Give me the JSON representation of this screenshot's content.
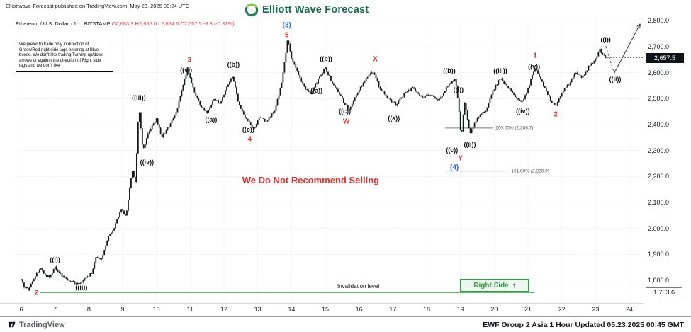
{
  "header": {
    "publisher": "Elliottwave-Forecast published on TradingView.com, May 23, 2025 00:24 UTC",
    "logo_text": "Elliott Wave Forecast",
    "currency": "USD"
  },
  "symbol_line": {
    "title": "Ethereum / U.S. Dollar · 1h · BITSTAMP",
    "ohlc": "O2,663.3  H2,665.0  L2,654.6  C2,657.5  -8.3 (-0.31%)"
  },
  "disclaimer": {
    "text": "We prefer to trade only in direction of Green/Red right side tags entering at Blue boxes. We don't like trading Turning up/down arrows or against the direction of Right side tags and we don't like"
  },
  "note": {
    "text": "We Do Not Recommend Selling",
    "day": 12.54,
    "price": 2206
  },
  "invalidation": {
    "label": "Invalidation level",
    "price": 1753.6,
    "price_label": "1,753.6",
    "from_day": 6.55,
    "to_day": 21.2,
    "right_side": "Right Side",
    "arrow": "↑"
  },
  "footer": {
    "brand": "TradingView",
    "note": "EWF Group 2 Asia 1 Hour Updated 05.23.2025 00:45 GMT"
  },
  "colors": {
    "candle": "#14171c",
    "red_label": "#e03131",
    "blue_label": "#2962ff",
    "dark_label": "#111111",
    "invalidation_green": "#4caf50",
    "right_side_green": "#2f9e44",
    "ohlc_red": "#f23645",
    "fib_gray": "#787b86"
  },
  "chart_data": {
    "type": "candlestick",
    "symbol": "ETHUSD",
    "interval": "1h",
    "exchange": "BITSTAMP",
    "ohlc": {
      "open": 2663.3,
      "high": 2665.0,
      "low": 2654.6,
      "close": 2657.5,
      "change": -8.3,
      "change_pct": "-0.31%"
    },
    "last_price": 2657.5,
    "last_price_label": "2,657.5",
    "x_axis": {
      "ticks": [
        6,
        7,
        8,
        9,
        10,
        11,
        12,
        13,
        14,
        15,
        16,
        17,
        18,
        19,
        20,
        21,
        22,
        23,
        24
      ]
    },
    "y_axis": {
      "ticks": [
        "2,800.0",
        "2,700.0",
        "2,600.0",
        "2,500.0",
        "2,400.0",
        "2,300.0",
        "2,200.0",
        "2,100.0",
        "2,000.0",
        "1,900.0",
        "1,800.0"
      ]
    },
    "price_path": [
      [
        6.0,
        1800
      ],
      [
        6.1,
        1772
      ],
      [
        6.22,
        1762
      ],
      [
        6.35,
        1802
      ],
      [
        6.55,
        1848
      ],
      [
        6.7,
        1820
      ],
      [
        6.85,
        1812
      ],
      [
        7.0,
        1852
      ],
      [
        7.12,
        1828
      ],
      [
        7.3,
        1808
      ],
      [
        7.5,
        1795
      ],
      [
        7.72,
        1785
      ],
      [
        7.95,
        1812
      ],
      [
        8.1,
        1832
      ],
      [
        8.22,
        1895
      ],
      [
        8.38,
        1878
      ],
      [
        8.55,
        1958
      ],
      [
        8.75,
        2005
      ],
      [
        8.95,
        2072
      ],
      [
        9.1,
        2048
      ],
      [
        9.28,
        2225
      ],
      [
        9.38,
        2175
      ],
      [
        9.48,
        2478
      ],
      [
        9.6,
        2295
      ],
      [
        9.78,
        2375
      ],
      [
        10.0,
        2422
      ],
      [
        10.15,
        2352
      ],
      [
        10.35,
        2388
      ],
      [
        10.6,
        2452
      ],
      [
        10.8,
        2555
      ],
      [
        10.92,
        2618
      ],
      [
        11.1,
        2535
      ],
      [
        11.3,
        2472
      ],
      [
        11.52,
        2445
      ],
      [
        11.7,
        2502
      ],
      [
        11.88,
        2478
      ],
      [
        12.08,
        2542
      ],
      [
        12.25,
        2585
      ],
      [
        12.45,
        2475
      ],
      [
        12.65,
        2422
      ],
      [
        12.88,
        2382
      ],
      [
        13.05,
        2428
      ],
      [
        13.25,
        2412
      ],
      [
        13.5,
        2452
      ],
      [
        13.72,
        2568
      ],
      [
        13.88,
        2728
      ],
      [
        14.02,
        2648
      ],
      [
        14.18,
        2598
      ],
      [
        14.38,
        2545
      ],
      [
        14.58,
        2518
      ],
      [
        14.78,
        2572
      ],
      [
        15.0,
        2618
      ],
      [
        15.2,
        2562
      ],
      [
        15.45,
        2508
      ],
      [
        15.7,
        2455
      ],
      [
        16.0,
        2538
      ],
      [
        16.4,
        2608
      ],
      [
        16.62,
        2538
      ],
      [
        16.85,
        2502
      ],
      [
        17.1,
        2476
      ],
      [
        17.35,
        2522
      ],
      [
        17.6,
        2542
      ],
      [
        17.85,
        2505
      ],
      [
        18.1,
        2518
      ],
      [
        18.35,
        2492
      ],
      [
        18.6,
        2545
      ],
      [
        18.85,
        2580
      ],
      [
        18.95,
        2462
      ],
      [
        19.02,
        2342
      ],
      [
        19.12,
        2488
      ],
      [
        19.28,
        2366
      ],
      [
        19.5,
        2428
      ],
      [
        19.75,
        2455
      ],
      [
        19.95,
        2528
      ],
      [
        20.18,
        2580
      ],
      [
        20.4,
        2545
      ],
      [
        20.65,
        2502
      ],
      [
        20.85,
        2486
      ],
      [
        21.05,
        2558
      ],
      [
        21.2,
        2620
      ],
      [
        21.45,
        2552
      ],
      [
        21.65,
        2498
      ],
      [
        21.82,
        2470
      ],
      [
        22.0,
        2525
      ],
      [
        22.2,
        2555
      ],
      [
        22.4,
        2602
      ],
      [
        22.6,
        2578
      ],
      [
        22.8,
        2625
      ],
      [
        23.0,
        2652
      ],
      [
        23.12,
        2690
      ],
      [
        23.2,
        2668
      ],
      [
        23.33,
        2657.5
      ]
    ],
    "wave_labels": [
      {
        "text": "2",
        "day": 6.45,
        "price": 1750,
        "color": "red"
      },
      {
        "text": "((i))",
        "day": 7.0,
        "price": 1878,
        "color": "dark"
      },
      {
        "text": "((ii))",
        "day": 7.78,
        "price": 1772,
        "color": "dark"
      },
      {
        "text": "((iii))",
        "day": 9.48,
        "price": 2503,
        "color": "dark"
      },
      {
        "text": "((iv))",
        "day": 9.72,
        "price": 2256,
        "color": "dark"
      },
      {
        "text": "3",
        "day": 10.98,
        "price": 2648,
        "color": "red"
      },
      {
        "text": "((v))",
        "day": 10.88,
        "price": 2610,
        "color": "dark"
      },
      {
        "text": "((a))",
        "day": 11.62,
        "price": 2418,
        "color": "dark"
      },
      {
        "text": "((b))",
        "day": 12.28,
        "price": 2632,
        "color": "dark"
      },
      {
        "text": "((c))",
        "day": 12.72,
        "price": 2380,
        "color": "dark"
      },
      {
        "text": "4",
        "day": 12.76,
        "price": 2342,
        "color": "red"
      },
      {
        "text": "(3)",
        "day": 13.86,
        "price": 2782,
        "color": "blue"
      },
      {
        "text": "5",
        "day": 13.86,
        "price": 2744,
        "color": "red"
      },
      {
        "text": "((a))",
        "day": 14.74,
        "price": 2532,
        "color": "dark"
      },
      {
        "text": "((b))",
        "day": 15.02,
        "price": 2655,
        "color": "dark"
      },
      {
        "text": "((c))",
        "day": 15.58,
        "price": 2452,
        "color": "dark"
      },
      {
        "text": "W",
        "day": 15.62,
        "price": 2412,
        "color": "red"
      },
      {
        "text": "X",
        "day": 16.48,
        "price": 2652,
        "color": "red"
      },
      {
        "text": "((a))",
        "day": 17.03,
        "price": 2425,
        "color": "dark"
      },
      {
        "text": "((b))",
        "day": 18.67,
        "price": 2608,
        "color": "dark"
      },
      {
        "text": "((i))",
        "day": 18.94,
        "price": 2535,
        "color": "dark"
      },
      {
        "text": "((c))",
        "day": 18.75,
        "price": 2302,
        "color": "dark"
      },
      {
        "text": "(4)",
        "day": 18.82,
        "price": 2235,
        "color": "blue"
      },
      {
        "text": "Y",
        "day": 19.0,
        "price": 2268,
        "color": "red"
      },
      {
        "text": "((ii))",
        "day": 19.28,
        "price": 2325,
        "color": "dark"
      },
      {
        "text": "((iii))",
        "day": 20.18,
        "price": 2608,
        "color": "dark"
      },
      {
        "text": "((iv))",
        "day": 20.85,
        "price": 2452,
        "color": "dark"
      },
      {
        "text": "1",
        "day": 21.21,
        "price": 2665,
        "color": "red"
      },
      {
        "text": "((v))",
        "day": 21.18,
        "price": 2624,
        "color": "dark"
      },
      {
        "text": "2",
        "day": 21.82,
        "price": 2438,
        "color": "red"
      },
      {
        "text": "((i))",
        "day": 23.3,
        "price": 2726,
        "color": "dark"
      },
      {
        "text": "((ii))",
        "day": 23.58,
        "price": 2575,
        "color": "dark"
      }
    ],
    "fib_levels": [
      {
        "label": "100.00% (2,386.7)",
        "price": 2386.7,
        "from_day": 18.55,
        "to_day": 19.95
      },
      {
        "label": "161.80% (2,220.9)",
        "price": 2220.9,
        "from_day": 18.55,
        "to_day": 20.42
      }
    ],
    "projection": {
      "dashed": [
        [
          23.3,
          2702
        ],
        [
          23.55,
          2598
        ]
      ],
      "arrow": [
        [
          23.55,
          2598
        ],
        [
          24.32,
          2788
        ]
      ]
    }
  }
}
